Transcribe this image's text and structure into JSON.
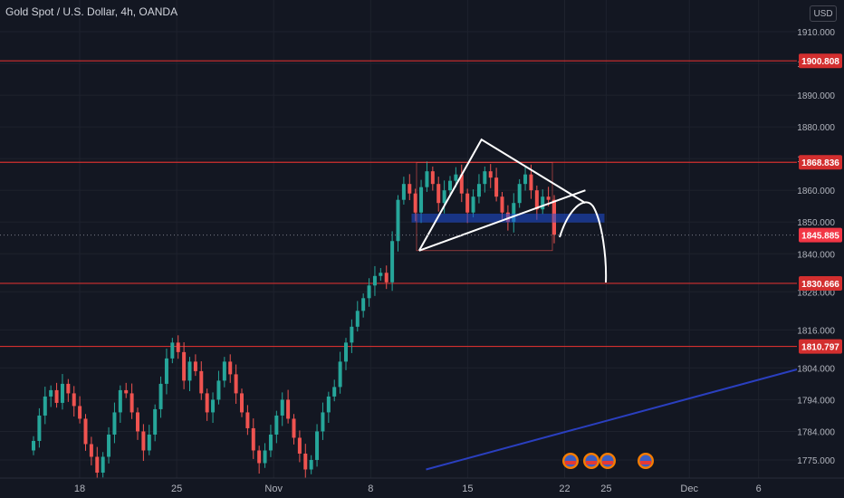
{
  "header": {
    "title": "Gold Spot / U.S. Dollar, 4h, OANDA",
    "currency": "USD"
  },
  "colors": {
    "background": "#131722",
    "grid": "#1e222d",
    "up": "#26a69a",
    "down": "#ef5350",
    "level_line": "#d32f2f",
    "trend_line": "#2a3fbf",
    "zone": "#1e4fd8",
    "drawing": "#ffffff",
    "last_price_bg": "#f23645"
  },
  "chart_data": {
    "type": "candlestick",
    "symbol": "Gold Spot / U.S. Dollar",
    "interval": "4h",
    "source": "OANDA",
    "ylim": [
      1773.0,
      1912.0
    ],
    "y_ticks": [
      1775.0,
      1784.0,
      1794.0,
      1804.0,
      1816.0,
      1828.0,
      1840.0,
      1850.0,
      1860.0,
      1870.0,
      1880.0,
      1890.0,
      1900.0,
      1910.0
    ],
    "x_ticks": [
      {
        "label": "18",
        "date": "2021-10-18"
      },
      {
        "label": "25",
        "date": "2021-10-25"
      },
      {
        "label": "Nov",
        "date": "2021-11-01"
      },
      {
        "label": "8",
        "date": "2021-11-08"
      },
      {
        "label": "15",
        "date": "2021-11-15"
      },
      {
        "label": "22",
        "date": "2021-11-22"
      },
      {
        "label": "25",
        "date": "2021-11-25"
      },
      {
        "label": "Dec",
        "date": "2021-12-01"
      },
      {
        "label": "6",
        "date": "2021-12-06"
      }
    ],
    "levels": [
      {
        "label": "1900.808",
        "value": 1900.808
      },
      {
        "label": "1868.836",
        "value": 1868.836
      },
      {
        "label": "1830.666",
        "value": 1830.666
      },
      {
        "label": "1810.797",
        "value": 1810.797
      }
    ],
    "last_price": {
      "label": "1845.885",
      "value": 1845.885
    },
    "series_close": [
      1781,
      1789,
      1795,
      1797,
      1793,
      1799,
      1796,
      1792,
      1788,
      1780,
      1776,
      1771,
      1776,
      1783,
      1790,
      1797,
      1796,
      1790,
      1784,
      1778,
      1783,
      1791,
      1799,
      1807,
      1812,
      1809,
      1800,
      1806,
      1803,
      1796,
      1790,
      1794,
      1800,
      1806,
      1802,
      1796,
      1790,
      1785,
      1778,
      1774,
      1778,
      1783,
      1789,
      1794,
      1788,
      1782,
      1777,
      1772,
      1775,
      1784,
      1790,
      1795,
      1798,
      1806,
      1812,
      1817,
      1822,
      1826,
      1830,
      1833,
      1834,
      1831,
      1844,
      1857,
      1862,
      1859,
      1853,
      1861,
      1866,
      1862,
      1856,
      1860,
      1863,
      1865,
      1859,
      1853,
      1858,
      1862,
      1866,
      1864,
      1858,
      1853,
      1850,
      1856,
      1862,
      1865,
      1860,
      1854,
      1858,
      1857,
      1846
    ],
    "annotations": [
      {
        "kind": "triangle",
        "points": [
          {
            "date": "2021-11-11T12:00",
            "price": 1841
          },
          {
            "date": "2021-11-16T00:00",
            "price": 1876
          },
          {
            "date": "2021-11-23T12:00",
            "price": 1856
          }
        ]
      },
      {
        "kind": "trendline",
        "points": [
          {
            "date": "2021-11-11T12:00",
            "price": 1841
          },
          {
            "date": "2021-11-23T12:00",
            "price": 1860
          }
        ]
      },
      {
        "kind": "zone",
        "price_low": 1850.0,
        "price_high": 1852.5
      },
      {
        "kind": "projection",
        "description": "curved path up then down"
      },
      {
        "kind": "trendline",
        "color": "blue",
        "points": [
          {
            "date": "2021-11-12",
            "price": 1772
          },
          {
            "date": "2021-12-10",
            "price": 1805
          }
        ]
      }
    ]
  }
}
